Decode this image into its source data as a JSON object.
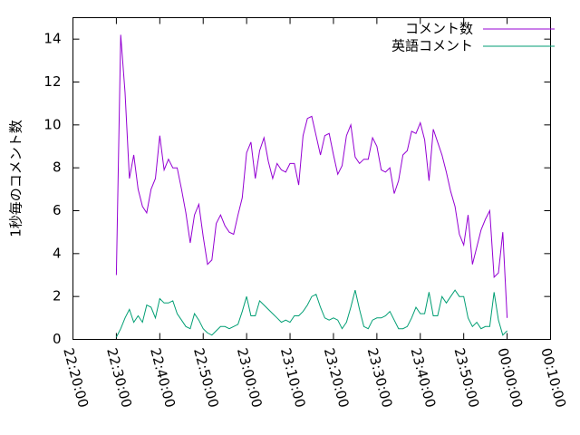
{
  "chart_data": {
    "type": "line",
    "ylabel": "1秒毎のコメント数",
    "x": [
      "22:30:00",
      "22:31:00",
      "22:32:00",
      "22:33:00",
      "22:34:00",
      "22:35:00",
      "22:36:00",
      "22:37:00",
      "22:38:00",
      "22:39:00",
      "22:40:00",
      "22:41:00",
      "22:42:00",
      "22:43:00",
      "22:44:00",
      "22:45:00",
      "22:46:00",
      "22:47:00",
      "22:48:00",
      "22:49:00",
      "22:50:00",
      "22:51:00",
      "22:52:00",
      "22:53:00",
      "22:54:00",
      "22:55:00",
      "22:56:00",
      "22:57:00",
      "22:58:00",
      "22:59:00",
      "23:00:00",
      "23:01:00",
      "23:02:00",
      "23:03:00",
      "23:04:00",
      "23:05:00",
      "23:06:00",
      "23:07:00",
      "23:08:00",
      "23:09:00",
      "23:10:00",
      "23:11:00",
      "23:12:00",
      "23:13:00",
      "23:14:00",
      "23:15:00",
      "23:16:00",
      "23:17:00",
      "23:18:00",
      "23:19:00",
      "23:20:00",
      "23:21:00",
      "23:22:00",
      "23:23:00",
      "23:24:00",
      "23:25:00",
      "23:26:00",
      "23:27:00",
      "23:28:00",
      "23:29:00",
      "23:30:00",
      "23:31:00",
      "23:32:00",
      "23:33:00",
      "23:34:00",
      "23:35:00",
      "23:36:00",
      "23:37:00",
      "23:38:00",
      "23:39:00",
      "23:40:00",
      "23:41:00",
      "23:42:00",
      "23:43:00",
      "23:44:00",
      "23:45:00",
      "23:46:00",
      "23:47:00",
      "23:48:00",
      "23:49:00",
      "23:50:00",
      "23:51:00",
      "23:52:00",
      "23:53:00",
      "23:54:00",
      "23:55:00",
      "23:56:00",
      "23:57:00",
      "23:58:00",
      "23:59:00",
      "00:00:00"
    ],
    "series": [
      {
        "name": "コメント数",
        "color": "#9400d3",
        "values": [
          3.0,
          14.2,
          11.5,
          7.5,
          8.6,
          7.0,
          6.2,
          5.9,
          7.0,
          7.5,
          9.5,
          7.9,
          8.4,
          8.0,
          8.0,
          7.0,
          5.9,
          4.5,
          5.8,
          6.3,
          4.8,
          3.5,
          3.7,
          5.4,
          5.8,
          5.3,
          5.0,
          4.9,
          5.8,
          6.6,
          8.7,
          9.2,
          7.5,
          8.8,
          9.4,
          8.3,
          7.5,
          8.2,
          7.9,
          7.8,
          8.2,
          8.2,
          7.2,
          9.5,
          10.3,
          10.4,
          9.5,
          8.6,
          9.5,
          9.6,
          8.6,
          7.7,
          8.1,
          9.5,
          10.0,
          8.5,
          8.2,
          8.4,
          8.4,
          9.4,
          9.0,
          7.9,
          7.8,
          8.0,
          6.8,
          7.4,
          8.6,
          8.8,
          9.7,
          9.6,
          10.1,
          9.3,
          7.4,
          9.8,
          9.2,
          8.6,
          7.8,
          6.9,
          6.2,
          4.9,
          4.4,
          5.8,
          3.5,
          4.3,
          5.1,
          5.6,
          6.0,
          2.9,
          3.1,
          5.0,
          1.0
        ]
      },
      {
        "name": "英語コメント",
        "color": "#009e73",
        "values": [
          0.1,
          0.5,
          1.0,
          1.4,
          0.8,
          1.1,
          0.8,
          1.6,
          1.5,
          1.0,
          1.9,
          1.7,
          1.7,
          1.8,
          1.2,
          0.9,
          0.6,
          0.5,
          1.2,
          0.9,
          0.5,
          0.3,
          0.2,
          0.4,
          0.6,
          0.6,
          0.5,
          0.6,
          0.7,
          1.3,
          2.0,
          1.1,
          1.1,
          1.8,
          1.6,
          1.4,
          1.2,
          1.0,
          0.8,
          0.9,
          0.8,
          1.1,
          1.1,
          1.3,
          1.6,
          2.0,
          2.1,
          1.5,
          1.0,
          0.9,
          1.0,
          0.9,
          0.5,
          0.8,
          1.5,
          2.3,
          1.4,
          0.6,
          0.5,
          0.9,
          1.0,
          1.0,
          1.1,
          1.3,
          0.9,
          0.5,
          0.5,
          0.6,
          1.0,
          1.5,
          1.2,
          1.2,
          2.2,
          1.1,
          1.1,
          2.0,
          1.7,
          2.0,
          2.3,
          2.0,
          2.0,
          1.0,
          0.6,
          0.8,
          0.5,
          0.6,
          0.6,
          2.2,
          0.9,
          0.2,
          0.4
        ]
      }
    ],
    "xlim": [
      "22:20:00",
      "00:10:00"
    ],
    "xticks": [
      "22:20:00",
      "22:30:00",
      "22:40:00",
      "22:50:00",
      "23:00:00",
      "23:10:00",
      "23:20:00",
      "23:30:00",
      "23:40:00",
      "23:50:00",
      "00:00:00",
      "00:10:00"
    ],
    "ylim": [
      0,
      15
    ],
    "yticks": [
      0,
      2,
      4,
      6,
      8,
      10,
      12,
      14
    ],
    "legend": "top-right"
  }
}
